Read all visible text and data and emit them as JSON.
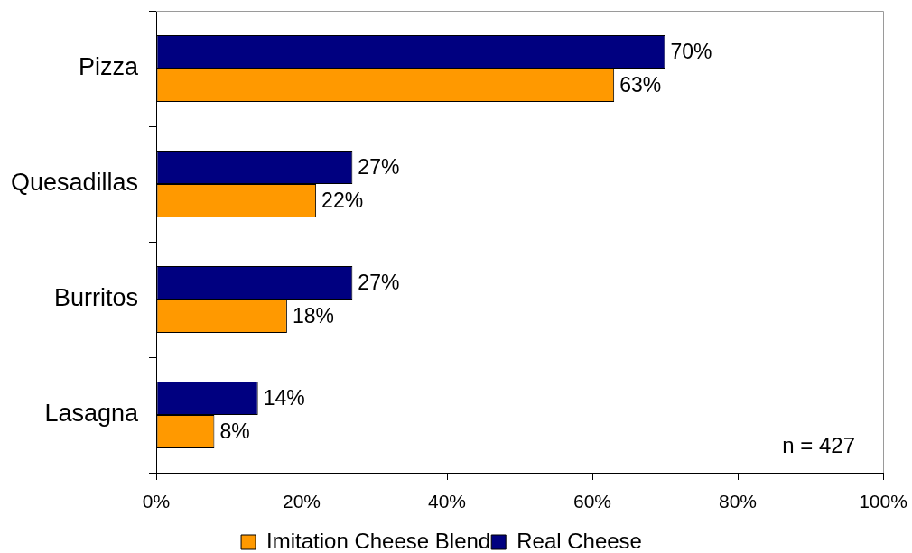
{
  "chart_data": {
    "type": "bar",
    "orientation": "horizontal",
    "categories": [
      "Pizza",
      "Quesadillas",
      "Burritos",
      "Lasagna"
    ],
    "series": [
      {
        "name": "Imitation Cheese Blend",
        "color": "#ff9900",
        "values": [
          63,
          22,
          18,
          8
        ],
        "value_labels": [
          "63%",
          "22%",
          "18%",
          "8%"
        ]
      },
      {
        "name": "Real Cheese",
        "color": "#000080",
        "values": [
          70,
          27,
          27,
          14
        ],
        "value_labels": [
          "70%",
          "27%",
          "27%",
          "14%"
        ]
      }
    ],
    "xlim": [
      0,
      100
    ],
    "xticks": [
      {
        "value": 0,
        "label": "0%"
      },
      {
        "value": 20,
        "label": "20%"
      },
      {
        "value": 40,
        "label": "40%"
      },
      {
        "value": 60,
        "label": "60%"
      },
      {
        "value": 80,
        "label": "80%"
      },
      {
        "value": 100,
        "label": "100%"
      }
    ],
    "grid": false,
    "legend": "bottom",
    "annotations": [
      "n = 427"
    ]
  }
}
